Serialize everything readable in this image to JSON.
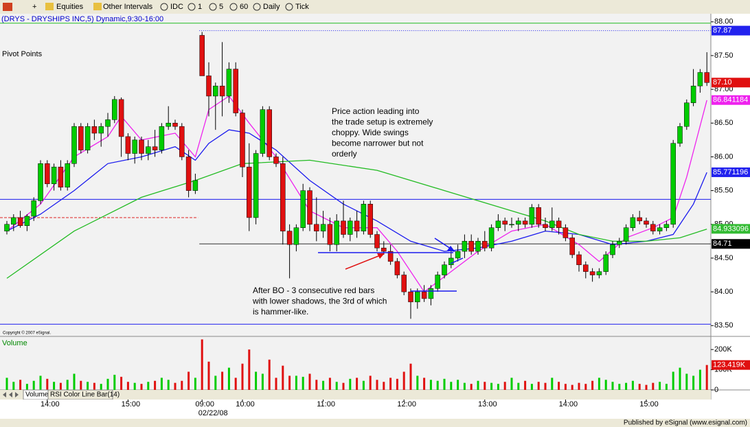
{
  "toolbar": {
    "items": [
      "Equities",
      "Other Intervals",
      "IDC",
      "1",
      "5",
      "60",
      "Daily",
      "Tick"
    ]
  },
  "tabs": [
    "Volume",
    "RSI Color Line Bar(14)"
  ],
  "footer": "Published by eSignal (www.esignal.com)",
  "chart_data": [
    {
      "type": "candlestick",
      "title": "(DRYS - DRYSHIPS INC,5) Dynamic,9:30-16:00",
      "pivot_label": "Pivot Points",
      "copyright": "Copyright © 2007 eSignal.",
      "date_label": "02/22/08",
      "annotations": [
        {
          "lines": [
            "Price action leading into",
            "the trade setup is extremely",
            "choppy.  Wide swings",
            "become narrower but not",
            "orderly"
          ]
        },
        {
          "lines": [
            "After BO - 3 consecutive red bars",
            "with lower shadows, the 3rd of which",
            "is hammer-like."
          ]
        }
      ],
      "categories": [
        null,
        null,
        null,
        null,
        null,
        null,
        "14:00",
        null,
        null,
        null,
        null,
        null,
        null,
        null,
        null,
        null,
        null,
        null,
        "15:00",
        null,
        null,
        null,
        null,
        null,
        null,
        null,
        null,
        null,
        null,
        "09:00",
        null,
        null,
        null,
        null,
        null,
        "10:00",
        null,
        null,
        null,
        null,
        null,
        null,
        null,
        null,
        null,
        null,
        null,
        "11:00",
        null,
        null,
        null,
        null,
        null,
        null,
        null,
        null,
        null,
        null,
        null,
        "12:00",
        null,
        null,
        null,
        null,
        null,
        null,
        null,
        null,
        null,
        null,
        null,
        "13:00",
        null,
        null,
        null,
        null,
        null,
        null,
        null,
        null,
        null,
        null,
        null,
        "14:00",
        null,
        null,
        null,
        null,
        null,
        null,
        null,
        null,
        null,
        null,
        null,
        "15:00",
        null,
        null,
        null,
        null,
        null,
        null,
        null,
        null,
        null
      ],
      "open": [
        84.9,
        85.0,
        85.1,
        84.98,
        85.12,
        85.35,
        85.9,
        85.6,
        85.85,
        85.55,
        85.9,
        86.45,
        86.1,
        86.45,
        86.35,
        86.45,
        86.55,
        86.85,
        86.3,
        86.05,
        86.25,
        86.05,
        86.15,
        86.1,
        86.45,
        86.5,
        86.45,
        86.0,
        85.5,
        87.8,
        87.2,
        86.9,
        87.05,
        86.9,
        87.3,
        86.65,
        85.85,
        85.1,
        86.05,
        86.7,
        86.0,
        85.9,
        84.9,
        84.7,
        84.95,
        85.5,
        85.0,
        84.9,
        85.0,
        84.7,
        85.05,
        84.85,
        85.05,
        84.9,
        85.3,
        84.85,
        84.65,
        84.6,
        84.45,
        84.25,
        84.0,
        83.85,
        84.0,
        83.9,
        84.05,
        84.25,
        84.4,
        84.5,
        84.6,
        84.75,
        84.6,
        84.75,
        84.65,
        84.95,
        85.05,
        85.0,
        85.0,
        85.05,
        85.0,
        85.25,
        85.0,
        84.95,
        85.05,
        84.95,
        84.8,
        84.55,
        84.4,
        84.3,
        84.25,
        84.3,
        84.55,
        84.7,
        84.75,
        84.95,
        85.1,
        85.05,
        85.0,
        84.9,
        84.95,
        85.0,
        86.2,
        86.45,
        86.8,
        87.05,
        87.25
      ],
      "high": [
        85.05,
        85.15,
        85.2,
        85.15,
        85.4,
        85.95,
        85.95,
        85.9,
        85.95,
        85.95,
        86.5,
        86.5,
        86.5,
        86.55,
        86.5,
        86.65,
        86.9,
        86.88,
        86.35,
        86.3,
        86.3,
        86.25,
        86.4,
        86.5,
        86.75,
        86.55,
        86.5,
        86.1,
        85.75,
        87.85,
        87.4,
        87.1,
        87.7,
        87.4,
        87.4,
        86.7,
        86.2,
        86.1,
        86.75,
        86.75,
        86.05,
        86.0,
        85.0,
        85.0,
        85.6,
        85.55,
        85.4,
        85.2,
        85.1,
        85.15,
        85.35,
        85.1,
        85.2,
        85.35,
        85.35,
        84.9,
        84.75,
        84.7,
        84.5,
        84.3,
        84.05,
        84.05,
        84.1,
        84.1,
        84.3,
        84.45,
        84.6,
        84.7,
        84.85,
        84.85,
        84.8,
        84.9,
        85.0,
        85.15,
        85.1,
        85.1,
        85.1,
        85.1,
        85.3,
        85.3,
        85.1,
        85.25,
        85.1,
        85.0,
        84.85,
        84.6,
        84.45,
        84.35,
        84.35,
        84.6,
        84.75,
        84.8,
        85.0,
        85.15,
        85.2,
        85.1,
        85.05,
        85.0,
        85.05,
        86.25,
        86.5,
        86.85,
        87.3,
        87.3,
        87.55
      ],
      "low": [
        84.85,
        84.9,
        84.95,
        84.9,
        85.05,
        85.3,
        85.55,
        85.5,
        85.5,
        85.5,
        85.85,
        86.05,
        86.05,
        86.25,
        86.15,
        86.3,
        86.5,
        86.0,
        85.95,
        85.9,
        85.95,
        85.95,
        86.0,
        86.05,
        86.4,
        86.4,
        85.95,
        85.4,
        85.45,
        87.2,
        86.6,
        86.4,
        86.6,
        86.8,
        86.6,
        85.7,
        84.9,
        85.0,
        86.0,
        85.95,
        85.85,
        84.7,
        84.2,
        84.6,
        84.9,
        84.9,
        84.75,
        84.8,
        84.6,
        84.6,
        84.8,
        84.75,
        84.8,
        84.85,
        84.8,
        84.6,
        84.55,
        84.4,
        84.2,
        83.95,
        83.6,
        83.75,
        83.85,
        83.8,
        84.0,
        84.2,
        84.35,
        84.45,
        84.5,
        84.55,
        84.55,
        84.6,
        84.6,
        84.9,
        84.9,
        84.95,
        84.9,
        84.95,
        84.95,
        84.95,
        84.9,
        84.9,
        84.85,
        84.75,
        84.5,
        84.3,
        84.2,
        84.15,
        84.2,
        84.25,
        84.5,
        84.65,
        84.7,
        84.9,
        85.0,
        84.95,
        84.85,
        84.85,
        84.9,
        84.95,
        86.15,
        86.4,
        86.75,
        86.95,
        87.05
      ],
      "close": [
        85.0,
        85.1,
        84.98,
        85.12,
        85.35,
        85.9,
        85.6,
        85.85,
        85.55,
        85.9,
        86.45,
        86.1,
        86.45,
        86.35,
        86.45,
        86.55,
        86.85,
        86.3,
        86.05,
        86.25,
        86.05,
        86.15,
        86.1,
        86.45,
        86.5,
        86.45,
        86.0,
        85.5,
        85.65,
        87.2,
        86.9,
        87.05,
        86.9,
        87.3,
        86.65,
        85.85,
        85.1,
        86.05,
        86.7,
        86.0,
        85.9,
        84.9,
        84.7,
        84.95,
        85.5,
        85.0,
        84.9,
        85.0,
        84.7,
        85.05,
        84.85,
        85.05,
        84.9,
        85.3,
        84.85,
        84.65,
        84.6,
        84.45,
        84.25,
        84.0,
        83.85,
        84.0,
        83.9,
        84.05,
        84.25,
        84.4,
        84.5,
        84.6,
        84.75,
        84.6,
        84.75,
        84.65,
        84.95,
        85.05,
        85.0,
        85.0,
        85.05,
        85.0,
        85.25,
        85.0,
        84.95,
        85.05,
        84.95,
        84.8,
        84.55,
        84.4,
        84.3,
        84.25,
        84.3,
        84.55,
        84.7,
        84.75,
        84.95,
        85.1,
        85.05,
        85.0,
        84.9,
        84.95,
        85.0,
        86.2,
        86.45,
        86.8,
        87.05,
        87.25,
        87.1
      ],
      "up_color": "#00cc00",
      "down_color": "#e01010",
      "overlays": [
        {
          "color": "#ee22ee",
          "x": [
            0,
            5,
            10,
            15,
            17,
            20,
            25,
            28,
            30,
            33,
            36,
            40,
            45,
            50,
            55,
            58,
            62,
            66,
            70,
            75,
            80,
            85,
            88,
            92,
            96,
            99,
            101,
            104
          ],
          "values": [
            84.9,
            85.3,
            86.0,
            86.3,
            86.6,
            86.25,
            86.35,
            86.0,
            86.7,
            86.9,
            86.5,
            86.0,
            85.2,
            84.95,
            84.95,
            84.6,
            84.0,
            84.3,
            84.6,
            84.9,
            85.0,
            84.7,
            84.45,
            84.8,
            84.95,
            85.1,
            85.7,
            86.84
          ]
        },
        {
          "color": "#1a1aee",
          "x": [
            0,
            5,
            10,
            15,
            20,
            25,
            28,
            30,
            33,
            36,
            40,
            45,
            50,
            55,
            60,
            65,
            70,
            75,
            80,
            85,
            90,
            95,
            99,
            102,
            104
          ],
          "values": [
            84.9,
            85.15,
            85.5,
            85.9,
            86.0,
            86.15,
            85.95,
            86.2,
            86.4,
            86.35,
            86.1,
            85.65,
            85.3,
            85.05,
            84.75,
            84.6,
            84.65,
            84.75,
            84.9,
            84.85,
            84.7,
            84.75,
            84.85,
            85.3,
            85.77
          ]
        },
        {
          "color": "#22bb22",
          "x": [
            0,
            10,
            20,
            28,
            35,
            45,
            55,
            65,
            75,
            80,
            85,
            90,
            95,
            100,
            104
          ],
          "values": [
            84.2,
            84.9,
            85.4,
            85.65,
            85.9,
            85.95,
            85.8,
            85.5,
            85.2,
            85.05,
            84.85,
            84.75,
            84.75,
            84.8,
            84.93
          ]
        }
      ],
      "levels": [
        {
          "value": 85.37,
          "color": "#1a1aee",
          "span": "all",
          "style": "solid"
        },
        {
          "value": 83.52,
          "color": "#1a1aee",
          "span": "all",
          "style": "solid"
        },
        {
          "value": 87.98,
          "color": "#22bb22",
          "span": "all",
          "style": "solid"
        },
        {
          "value": 84.71,
          "color": "#333333",
          "span": "day",
          "style": "solid"
        },
        {
          "value": 87.87,
          "color": "#1a1aee",
          "span": "day",
          "style": "dotted"
        },
        {
          "value": 85.1,
          "color": "#dd2222",
          "span": "prev",
          "style": "dashed"
        }
      ],
      "markers": [
        {
          "value": 87.87,
          "color": "#2222ee"
        },
        {
          "value": 87.1,
          "label": "87.10",
          "color": "#e01010"
        },
        {
          "value": 86.841184,
          "color": "#ee22ee"
        },
        {
          "value": 85.771196,
          "color": "#2222ee"
        },
        {
          "value": 84.933096,
          "color": "#33bb33"
        },
        {
          "value": 84.71,
          "color": "#000000"
        }
      ],
      "ylim": [
        83.34,
        88.12
      ],
      "yticks": [
        {
          "value": 83.5,
          "label": "83.50"
        },
        {
          "value": 84,
          "label": "84.00"
        },
        {
          "value": 84.5,
          "label": "84.50"
        },
        {
          "value": 85,
          "label": "85.00"
        },
        {
          "value": 85.5,
          "label": "85.50"
        },
        {
          "value": 86,
          "label": "86.00"
        },
        {
          "value": 86.5,
          "label": "86.50"
        },
        {
          "value": 87,
          "label": "87.00"
        },
        {
          "value": 87.5,
          "label": "87.50"
        },
        {
          "value": 88,
          "label": "88.00"
        }
      ],
      "grid": false
    },
    {
      "type": "bar",
      "title": "Volume",
      "values": [
        60000,
        40000,
        50000,
        30000,
        45000,
        70000,
        55000,
        40000,
        35000,
        50000,
        80000,
        45000,
        40000,
        35000,
        30000,
        55000,
        75000,
        65000,
        40000,
        35000,
        30000,
        40000,
        45000,
        60000,
        50000,
        35000,
        45000,
        90000,
        60000,
        250000,
        140000,
        70000,
        90000,
        110000,
        60000,
        130000,
        200000,
        90000,
        80000,
        150000,
        60000,
        120000,
        70000,
        70000,
        65000,
        80000,
        50000,
        45000,
        60000,
        40000,
        35000,
        55000,
        60000,
        45000,
        70000,
        50000,
        40000,
        60000,
        55000,
        90000,
        130000,
        70000,
        60000,
        50000,
        45000,
        55000,
        40000,
        50000,
        35000,
        30000,
        45000,
        40000,
        35000,
        30000,
        40000,
        60000,
        35000,
        45000,
        30000,
        40000,
        35000,
        60000,
        40000,
        30000,
        25000,
        35000,
        30000,
        45000,
        60000,
        50000,
        40000,
        30000,
        35000,
        45000,
        30000,
        25000,
        35000,
        40000,
        30000,
        90000,
        110000,
        80000,
        70000,
        100000,
        123419
      ],
      "markers": [
        {
          "value": 123419,
          "label": "123.419K",
          "color": "#e01010"
        }
      ],
      "ylim": [
        0,
        265000
      ],
      "yticks": [
        0,
        {
          "value": 100000,
          "label": "100K"
        },
        {
          "value": 200000,
          "label": "200K"
        }
      ]
    }
  ]
}
